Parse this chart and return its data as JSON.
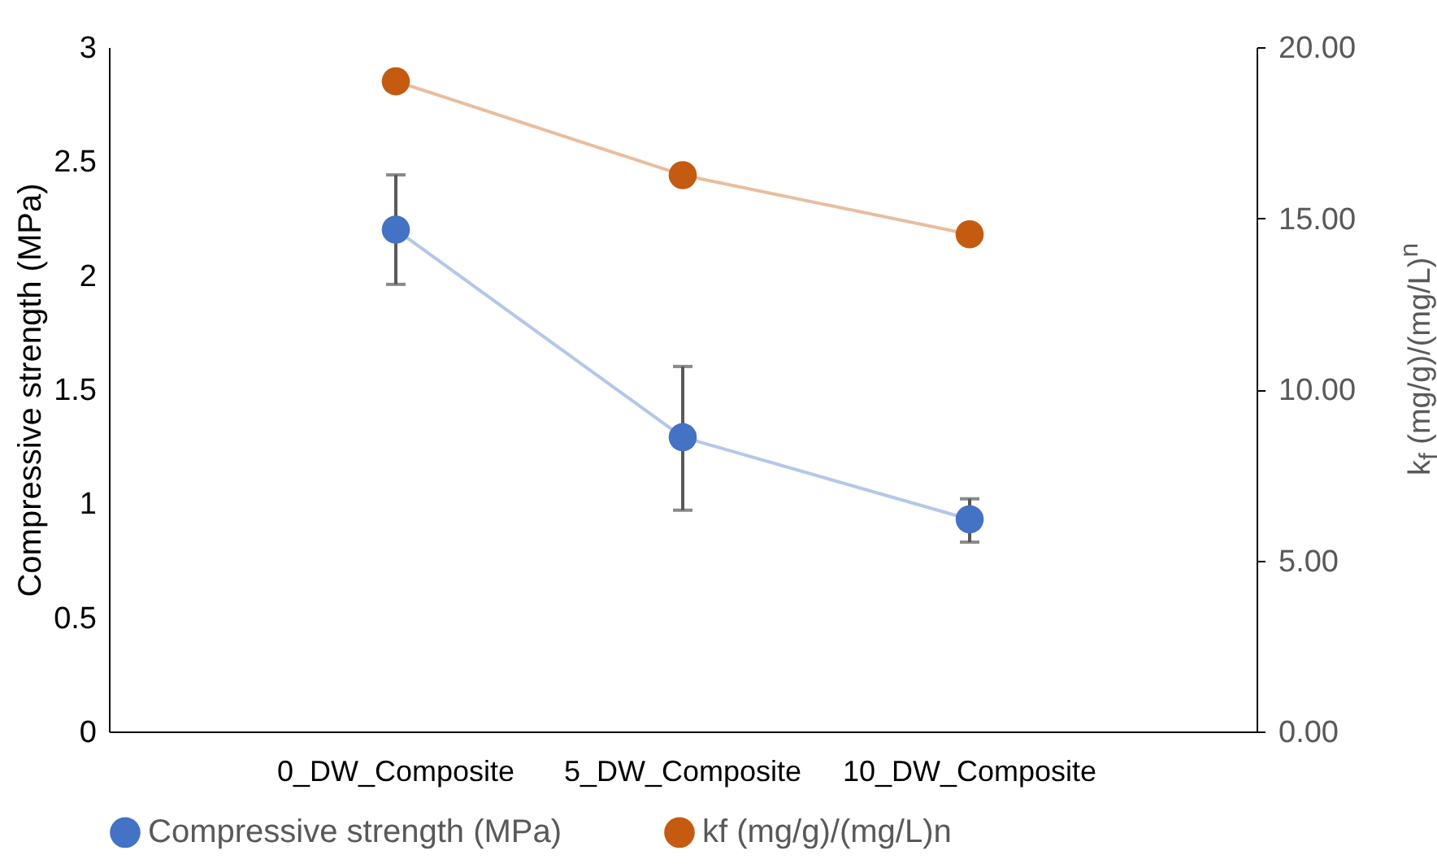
{
  "chart_data": {
    "type": "line",
    "categories": [
      "0_DW_Composite",
      "5_DW_Composite",
      "10_DW_Composite"
    ],
    "ylabel": "Compressive strength (MPa)",
    "y2label": "k$_{f}$ (mg/g)/(mg/L)$^{n}$",
    "ylim": [
      0,
      3
    ],
    "yticks": [
      0,
      0.5,
      1,
      1.5,
      2,
      2.5,
      3
    ],
    "y2lim": [
      0,
      20
    ],
    "y2ticks": [
      {
        "value": 0,
        "label": "0.00"
      },
      {
        "value": 5,
        "label": "5.00"
      },
      {
        "value": 10,
        "label": "10.00"
      },
      {
        "value": 15,
        "label": "15.00"
      },
      {
        "value": 20,
        "label": "20.00"
      }
    ],
    "series": [
      {
        "name": "Compressive strength (MPa)",
        "color": "#4472c4",
        "values": [
          2.2,
          1.29,
          0.93
        ],
        "errors": [
          [
            1.96,
            2.44
          ],
          [
            0.97,
            1.6
          ],
          [
            0.83,
            1.02
          ]
        ]
      },
      {
        "name": "kf (mg/g)/(mg/L)n",
        "color": "#c55a11",
        "values": [
          19.0,
          16.26,
          14.53
        ],
        "axis": "y2"
      }
    ],
    "marker": "circle",
    "line_style": "solid",
    "grid": false,
    "legend": "bottom"
  }
}
